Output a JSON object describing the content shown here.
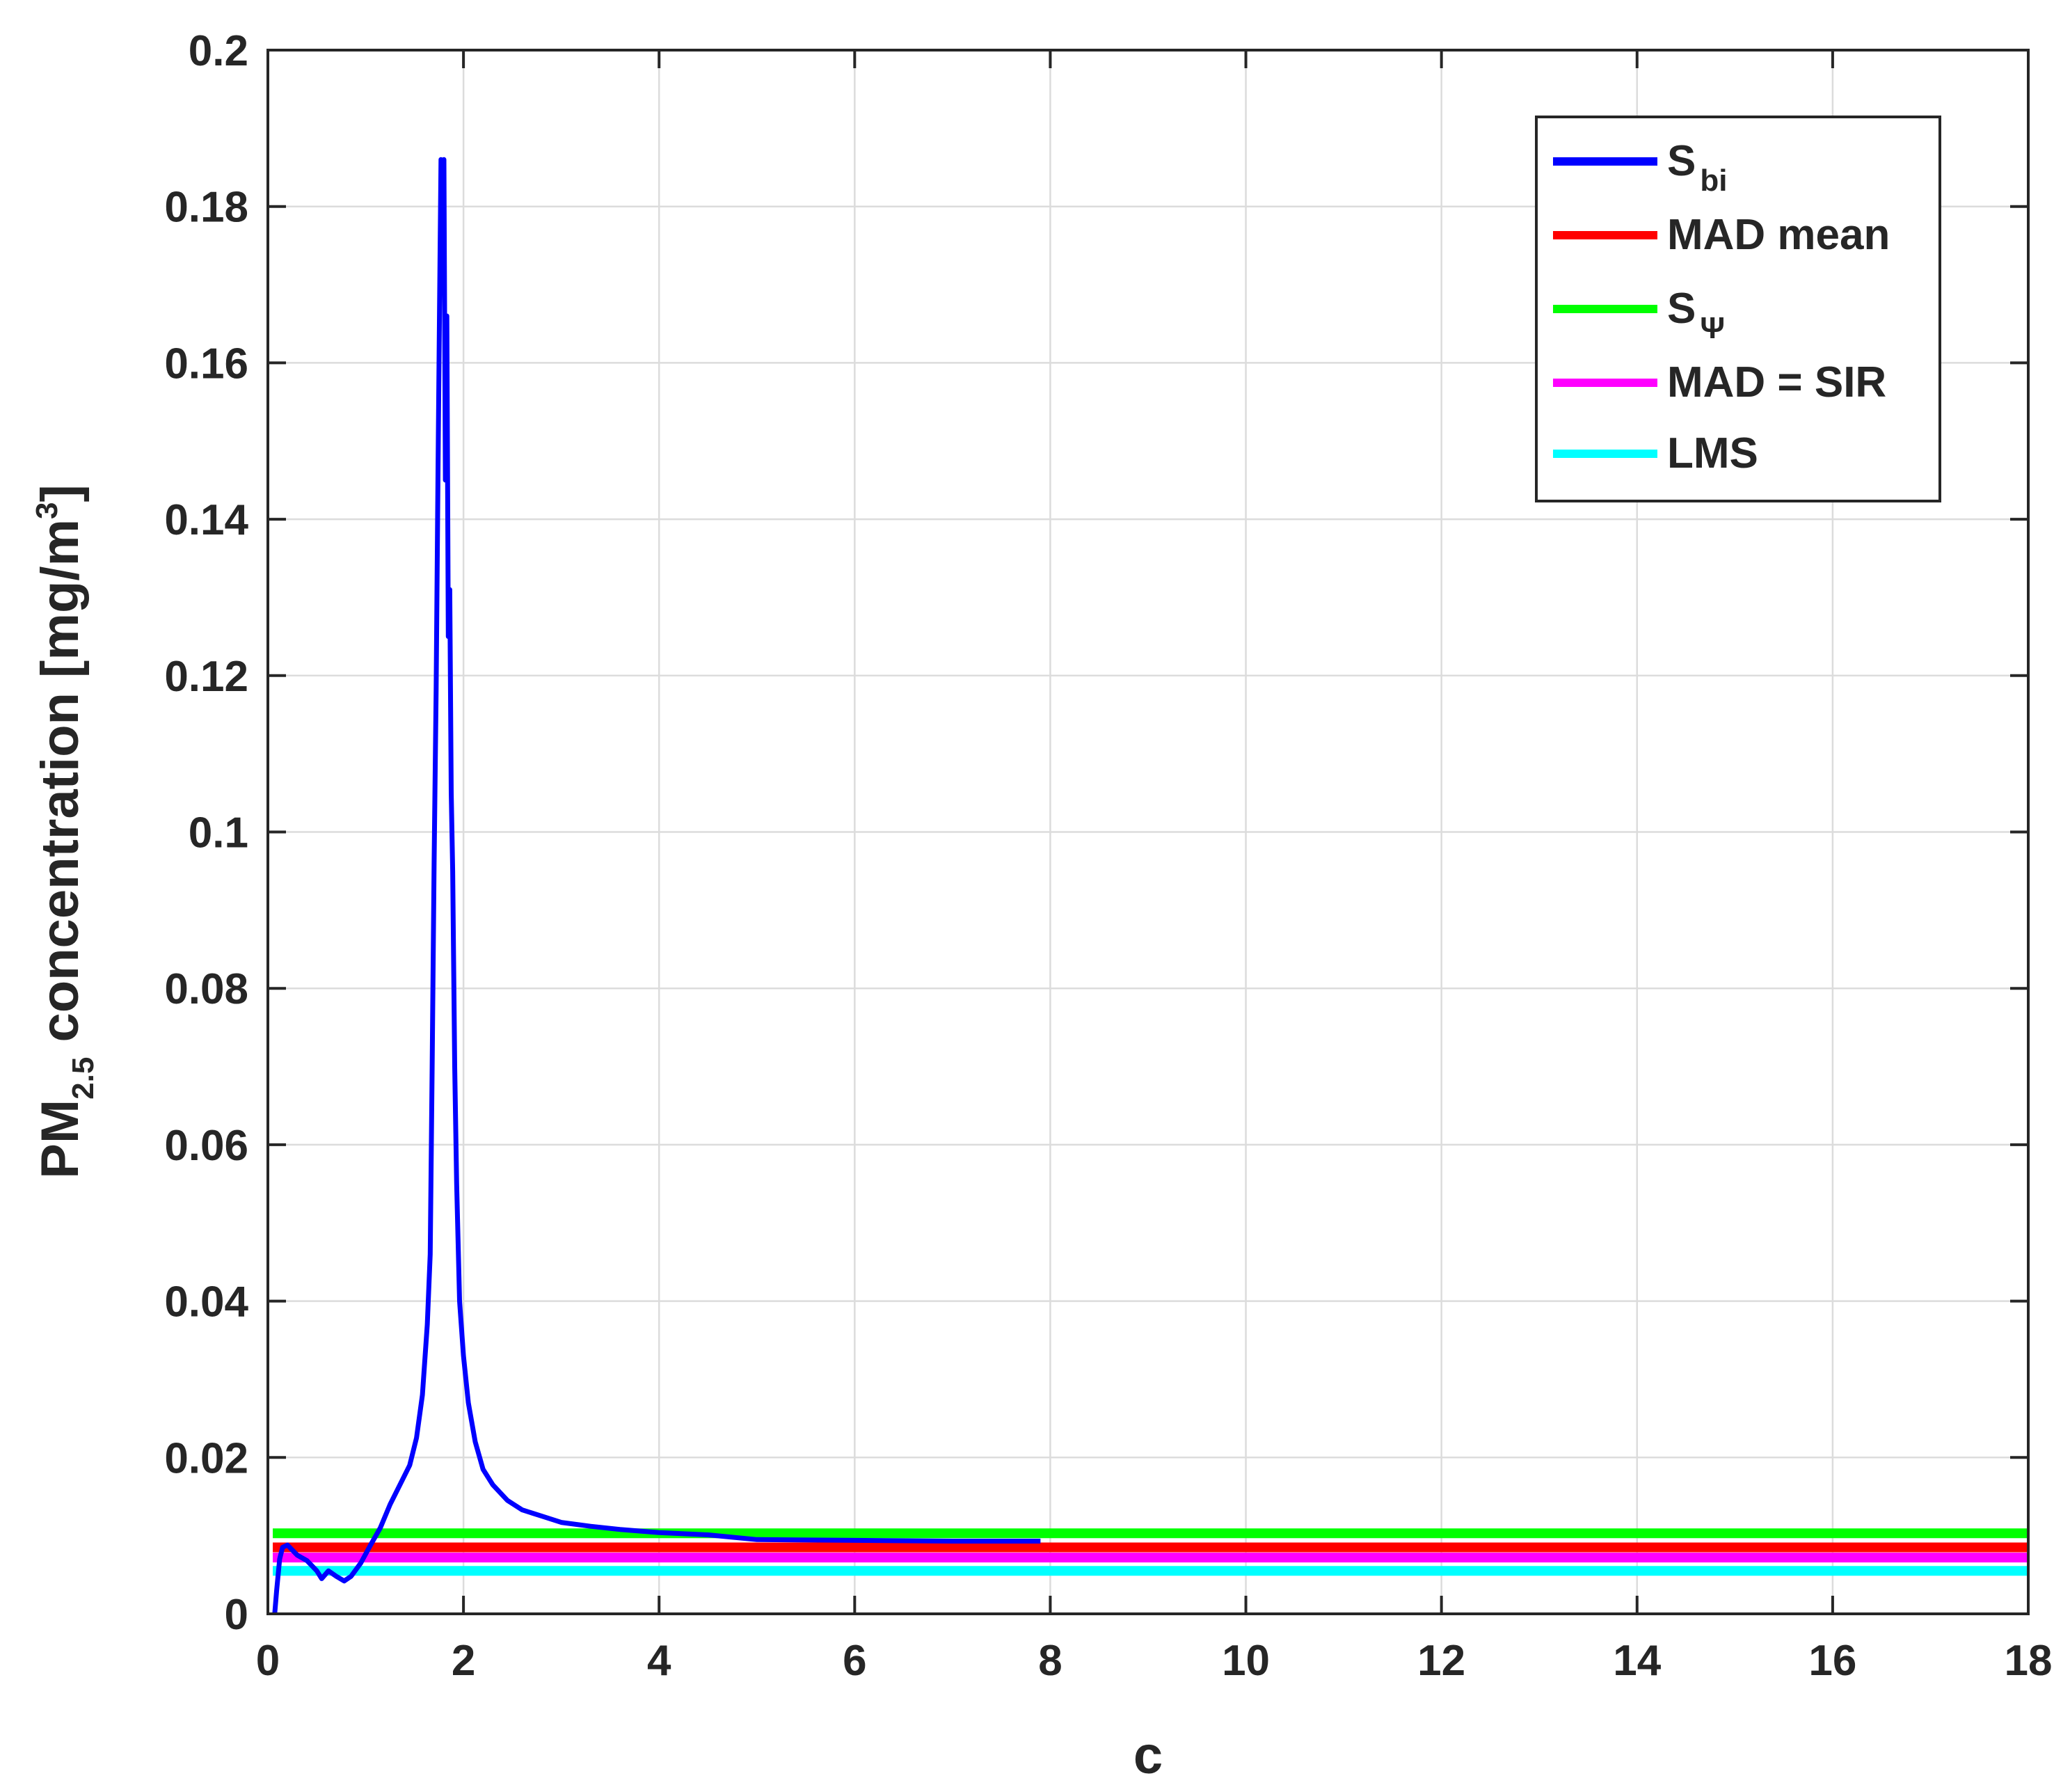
{
  "chart_data": {
    "type": "line",
    "xlabel": "c",
    "ylabel": {
      "prefix": "PM",
      "subscript": "2.5",
      "mid": " concentration [mg/m",
      "superscript": "3",
      "suffix": "]"
    },
    "xlim": [
      0,
      18
    ],
    "ylim": [
      0,
      0.2
    ],
    "xticks": [
      "0",
      "2",
      "4",
      "6",
      "8",
      "10",
      "12",
      "14",
      "16",
      "18"
    ],
    "yticks": [
      "0",
      "0.02",
      "0.04",
      "0.06",
      "0.08",
      "0.1",
      "0.12",
      "0.14",
      "0.16",
      "0.18",
      "0.2"
    ],
    "grid": true,
    "legend_position": "top-right",
    "series": [
      {
        "name": "S",
        "name_sub": "bi",
        "color": "#0000ff",
        "kind": "curve",
        "points": [
          [
            0.07,
            0.0
          ],
          [
            0.09,
            0.003
          ],
          [
            0.12,
            0.007
          ],
          [
            0.15,
            0.0085
          ],
          [
            0.2,
            0.0088
          ],
          [
            0.3,
            0.0075
          ],
          [
            0.4,
            0.0068
          ],
          [
            0.5,
            0.0055
          ],
          [
            0.55,
            0.0045
          ],
          [
            0.62,
            0.0055
          ],
          [
            0.7,
            0.0048
          ],
          [
            0.78,
            0.0042
          ],
          [
            0.85,
            0.0048
          ],
          [
            0.95,
            0.0065
          ],
          [
            1.05,
            0.0088
          ],
          [
            1.15,
            0.011
          ],
          [
            1.25,
            0.014
          ],
          [
            1.35,
            0.0165
          ],
          [
            1.45,
            0.019
          ],
          [
            1.52,
            0.0225
          ],
          [
            1.58,
            0.028
          ],
          [
            1.63,
            0.037
          ],
          [
            1.66,
            0.046
          ],
          [
            1.68,
            0.07
          ],
          [
            1.7,
            0.096
          ],
          [
            1.72,
            0.118
          ],
          [
            1.74,
            0.147
          ],
          [
            1.755,
            0.167
          ],
          [
            1.77,
            0.186
          ],
          [
            1.785,
            0.175
          ],
          [
            1.8,
            0.186
          ],
          [
            1.815,
            0.145
          ],
          [
            1.83,
            0.166
          ],
          [
            1.845,
            0.125
          ],
          [
            1.86,
            0.131
          ],
          [
            1.875,
            0.105
          ],
          [
            1.89,
            0.095
          ],
          [
            1.91,
            0.07
          ],
          [
            1.93,
            0.055
          ],
          [
            1.96,
            0.04
          ],
          [
            2.0,
            0.033
          ],
          [
            2.05,
            0.027
          ],
          [
            2.12,
            0.022
          ],
          [
            2.2,
            0.0185
          ],
          [
            2.3,
            0.0165
          ],
          [
            2.45,
            0.0145
          ],
          [
            2.6,
            0.0133
          ],
          [
            2.8,
            0.0125
          ],
          [
            3.0,
            0.0117
          ],
          [
            3.3,
            0.0112
          ],
          [
            3.6,
            0.0108
          ],
          [
            4.0,
            0.0104
          ],
          [
            4.5,
            0.0101
          ],
          [
            5.0,
            0.0095
          ],
          [
            6.0,
            0.0094
          ],
          [
            7.0,
            0.0093
          ],
          [
            7.9,
            0.0093
          ]
        ]
      },
      {
        "name": "MAD mean",
        "color": "#ff0000",
        "kind": "hline",
        "y": 0.0085
      },
      {
        "name": "S",
        "name_sub": "Ψ",
        "color": "#00ff00",
        "kind": "hline",
        "y": 0.0103
      },
      {
        "name": "MAD = SIR",
        "color": "#ff00ff",
        "kind": "hline",
        "y": 0.0072
      },
      {
        "name": "LMS",
        "color": "#00ffff",
        "kind": "hline",
        "y": 0.0055
      }
    ]
  }
}
